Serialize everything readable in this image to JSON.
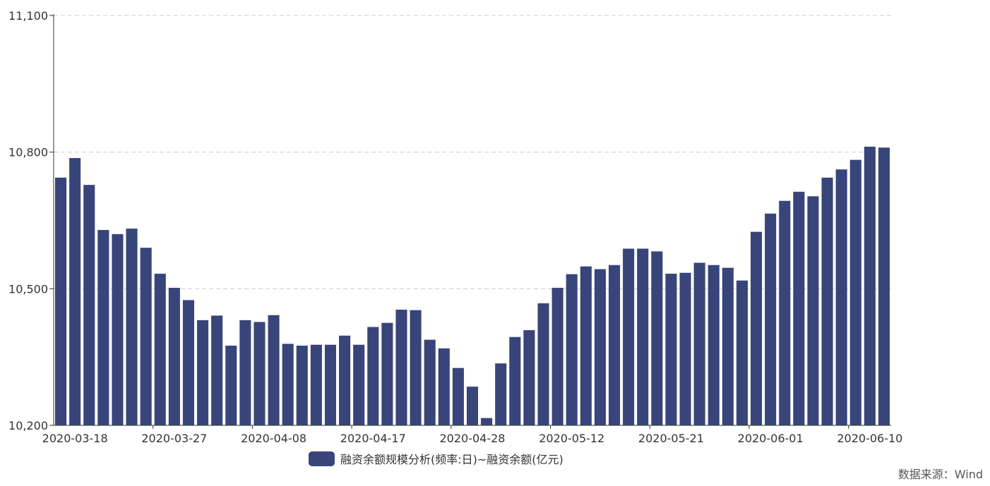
{
  "colors": {
    "bar": "#38457b",
    "grid": "#cccccc",
    "axis": "#333333"
  },
  "chart_data": {
    "type": "bar",
    "series": [
      {
        "name": "融资余额规模分析(频率:日)~融资余额(亿元)",
        "values": [
          10744,
          10787,
          10728,
          10629,
          10620,
          10632,
          10590,
          10533,
          10502,
          10475,
          10431,
          10441,
          10375,
          10431,
          10427,
          10442,
          10379,
          10375,
          10377,
          10377,
          10397,
          10377,
          10416,
          10425,
          10454,
          10453,
          10388,
          10369,
          10326,
          10285,
          10216,
          10336,
          10394,
          10409,
          10468,
          10502,
          10532,
          10549,
          10543,
          10552,
          10588,
          10588,
          10582,
          10533,
          10535,
          10557,
          10552,
          10546,
          10518,
          10625,
          10665,
          10693,
          10713,
          10703,
          10744,
          10762,
          10783,
          10812,
          10810
        ]
      }
    ],
    "x_tick_labels": [
      "2020-03-18",
      "2020-03-27",
      "2020-04-08",
      "2020-04-17",
      "2020-04-28",
      "2020-05-12",
      "2020-05-21",
      "2020-06-01",
      "2020-06-10"
    ],
    "x_tick_bar_index": [
      1,
      8,
      15,
      22,
      29,
      36,
      43,
      50,
      57
    ],
    "y_tick_labels": [
      "10,200",
      "10,500",
      "10,800",
      "11,100"
    ],
    "y_ticks": [
      10200,
      10500,
      10800,
      11100
    ],
    "ylim": [
      10200,
      11100
    ],
    "grid": true,
    "legend_position": "bottom-center"
  },
  "source_text": "数据来源：Wind"
}
